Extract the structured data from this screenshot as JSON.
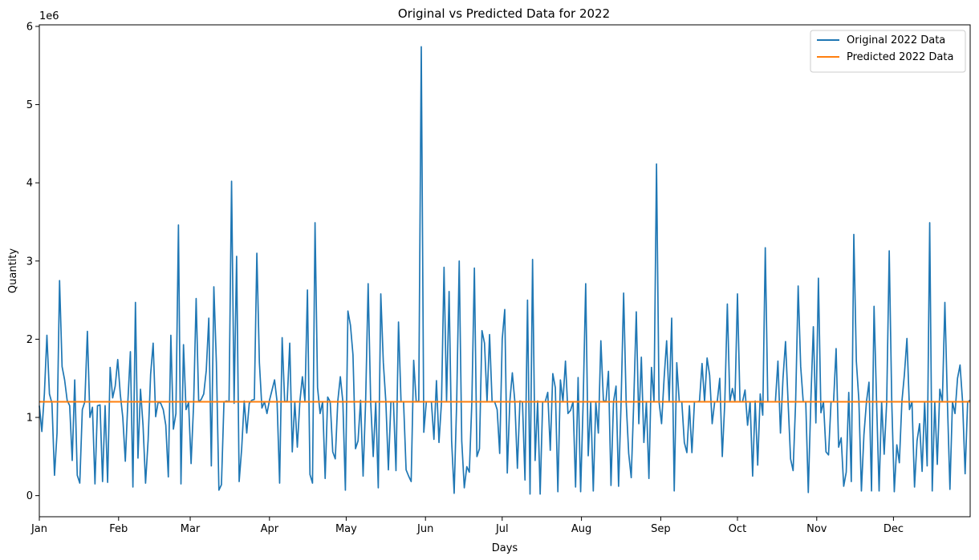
{
  "chart_data": {
    "type": "line",
    "title": "Original vs Predicted Data for 2022",
    "xlabel": "Days",
    "ylabel": "Quantity",
    "y_scale_label": "1e6",
    "x_start": "2022-01-01",
    "x_end": "2022-12-31",
    "xlim": [
      "2022-01-01",
      "2022-12-31"
    ],
    "ylim": [
      -270000,
      6020000
    ],
    "yticks": [
      0,
      1000000,
      2000000,
      3000000,
      4000000,
      5000000,
      6000000
    ],
    "ytick_labels": [
      "0",
      "1",
      "2",
      "3",
      "4",
      "5",
      "6"
    ],
    "xticks": [
      {
        "date": "2022-01-01",
        "label": "Jan"
      },
      {
        "date": "2022-02-01",
        "label": "Feb"
      },
      {
        "date": "2022-03-01",
        "label": "Mar"
      },
      {
        "date": "2022-04-01",
        "label": "Apr"
      },
      {
        "date": "2022-05-01",
        "label": "May"
      },
      {
        "date": "2022-06-01",
        "label": "Jun"
      },
      {
        "date": "2022-07-01",
        "label": "Jul"
      },
      {
        "date": "2022-08-01",
        "label": "Aug"
      },
      {
        "date": "2022-09-01",
        "label": "Sep"
      },
      {
        "date": "2022-10-01",
        "label": "Oct"
      },
      {
        "date": "2022-11-01",
        "label": "Nov"
      },
      {
        "date": "2022-12-01",
        "label": "Dec"
      }
    ],
    "grid": false,
    "legend_position": "upper right",
    "series": [
      {
        "name": "Original 2022 Data",
        "color": "#1f77b4",
        "values": [
          1150000,
          820000,
          1300000,
          2050000,
          1300000,
          1180000,
          260000,
          800000,
          2750000,
          1650000,
          1480000,
          1220000,
          1150000,
          450000,
          1480000,
          260000,
          160000,
          1100000,
          1200000,
          2100000,
          1000000,
          1130000,
          150000,
          1150000,
          1160000,
          180000,
          1150000,
          170000,
          1640000,
          1250000,
          1400000,
          1740000,
          1300000,
          1000000,
          440000,
          1200000,
          1840000,
          110000,
          2470000,
          480000,
          1360000,
          900000,
          160000,
          700000,
          1550000,
          1950000,
          1010000,
          1200000,
          1180000,
          1100000,
          900000,
          240000,
          2050000,
          850000,
          1050000,
          3460000,
          150000,
          1930000,
          1100000,
          1190000,
          410000,
          1170000,
          2520000,
          1200000,
          1230000,
          1300000,
          1600000,
          2270000,
          380000,
          2670000,
          1700000,
          70000,
          140000,
          1200000,
          1210000,
          1200000,
          4020000,
          1180000,
          3060000,
          180000,
          600000,
          1210000,
          800000,
          1180000,
          1220000,
          1230000,
          3100000,
          1700000,
          1120000,
          1200000,
          1050000,
          1220000,
          1350000,
          1480000,
          1200000,
          160000,
          2020000,
          1200000,
          1210000,
          1950000,
          560000,
          1200000,
          620000,
          1200000,
          1520000,
          1210000,
          2630000,
          270000,
          160000,
          3490000,
          1380000,
          1050000,
          1200000,
          220000,
          1260000,
          1200000,
          560000,
          470000,
          1210000,
          1520000,
          1200000,
          70000,
          2360000,
          2180000,
          1800000,
          600000,
          700000,
          1220000,
          250000,
          1200000,
          2710000,
          1200000,
          500000,
          1200000,
          100000,
          2580000,
          1700000,
          1200000,
          330000,
          1200000,
          1200000,
          320000,
          2220000,
          1200000,
          1200000,
          330000,
          250000,
          180000,
          1730000,
          1200000,
          1210000,
          5740000,
          810000,
          1200000,
          1200000,
          1200000,
          720000,
          1470000,
          680000,
          1200000,
          2920000,
          1210000,
          2610000,
          700000,
          30000,
          1200000,
          3000000,
          700000,
          100000,
          370000,
          300000,
          1200000,
          2910000,
          500000,
          600000,
          2110000,
          1950000,
          1200000,
          2060000,
          1200000,
          1200000,
          1100000,
          540000,
          2000000,
          2380000,
          290000,
          1200000,
          1570000,
          1200000,
          350000,
          1210000,
          1200000,
          200000,
          2500000,
          20000,
          3020000,
          450000,
          1210000,
          20000,
          1200000,
          1200000,
          1320000,
          580000,
          1560000,
          1380000,
          50000,
          1480000,
          1200000,
          1720000,
          1050000,
          1090000,
          1200000,
          110000,
          1510000,
          50000,
          1200000,
          2710000,
          510000,
          1200000,
          60000,
          1200000,
          800000,
          1980000,
          1220000,
          1200000,
          1590000,
          130000,
          1200000,
          1400000,
          120000,
          1200000,
          2590000,
          1200000,
          540000,
          230000,
          1200000,
          2350000,
          920000,
          1770000,
          680000,
          1200000,
          220000,
          1640000,
          1200000,
          4240000,
          1200000,
          920000,
          1500000,
          1980000,
          1200000,
          2270000,
          60000,
          1700000,
          1200000,
          1200000,
          680000,
          550000,
          1150000,
          550000,
          1200000,
          1200000,
          1210000,
          1690000,
          1200000,
          1760000,
          1540000,
          920000,
          1200000,
          1200000,
          1500000,
          500000,
          1200000,
          2450000,
          1200000,
          1370000,
          1200000,
          2580000,
          1200000,
          1200000,
          1350000,
          900000,
          1200000,
          250000,
          1210000,
          390000,
          1300000,
          1030000,
          3170000,
          1200000,
          1200000,
          1200000,
          1200000,
          1720000,
          800000,
          1500000,
          1970000,
          1210000,
          470000,
          320000,
          1200000,
          2680000,
          1650000,
          1200000,
          1200000,
          40000,
          1200000,
          2160000,
          930000,
          2780000,
          1060000,
          1200000,
          560000,
          520000,
          1200000,
          1200000,
          1880000,
          620000,
          740000,
          120000,
          300000,
          1320000,
          180000,
          3340000,
          1720000,
          1220000,
          60000,
          780000,
          1200000,
          1450000,
          60000,
          2420000,
          1200000,
          60000,
          1200000,
          530000,
          1200000,
          3130000,
          1200000,
          50000,
          650000,
          420000,
          1200000,
          1550000,
          2010000,
          1100000,
          1200000,
          110000,
          700000,
          920000,
          310000,
          1200000,
          380000,
          3490000,
          60000,
          1200000,
          400000,
          1360000,
          1200000,
          2470000,
          1200000,
          80000,
          1200000,
          1050000,
          1500000,
          1670000,
          1200000,
          280000,
          1200000,
          1220000
        ]
      },
      {
        "name": "Predicted 2022 Data",
        "color": "#ff7f0e",
        "values": [
          1200000,
          1200000
        ]
      }
    ]
  }
}
